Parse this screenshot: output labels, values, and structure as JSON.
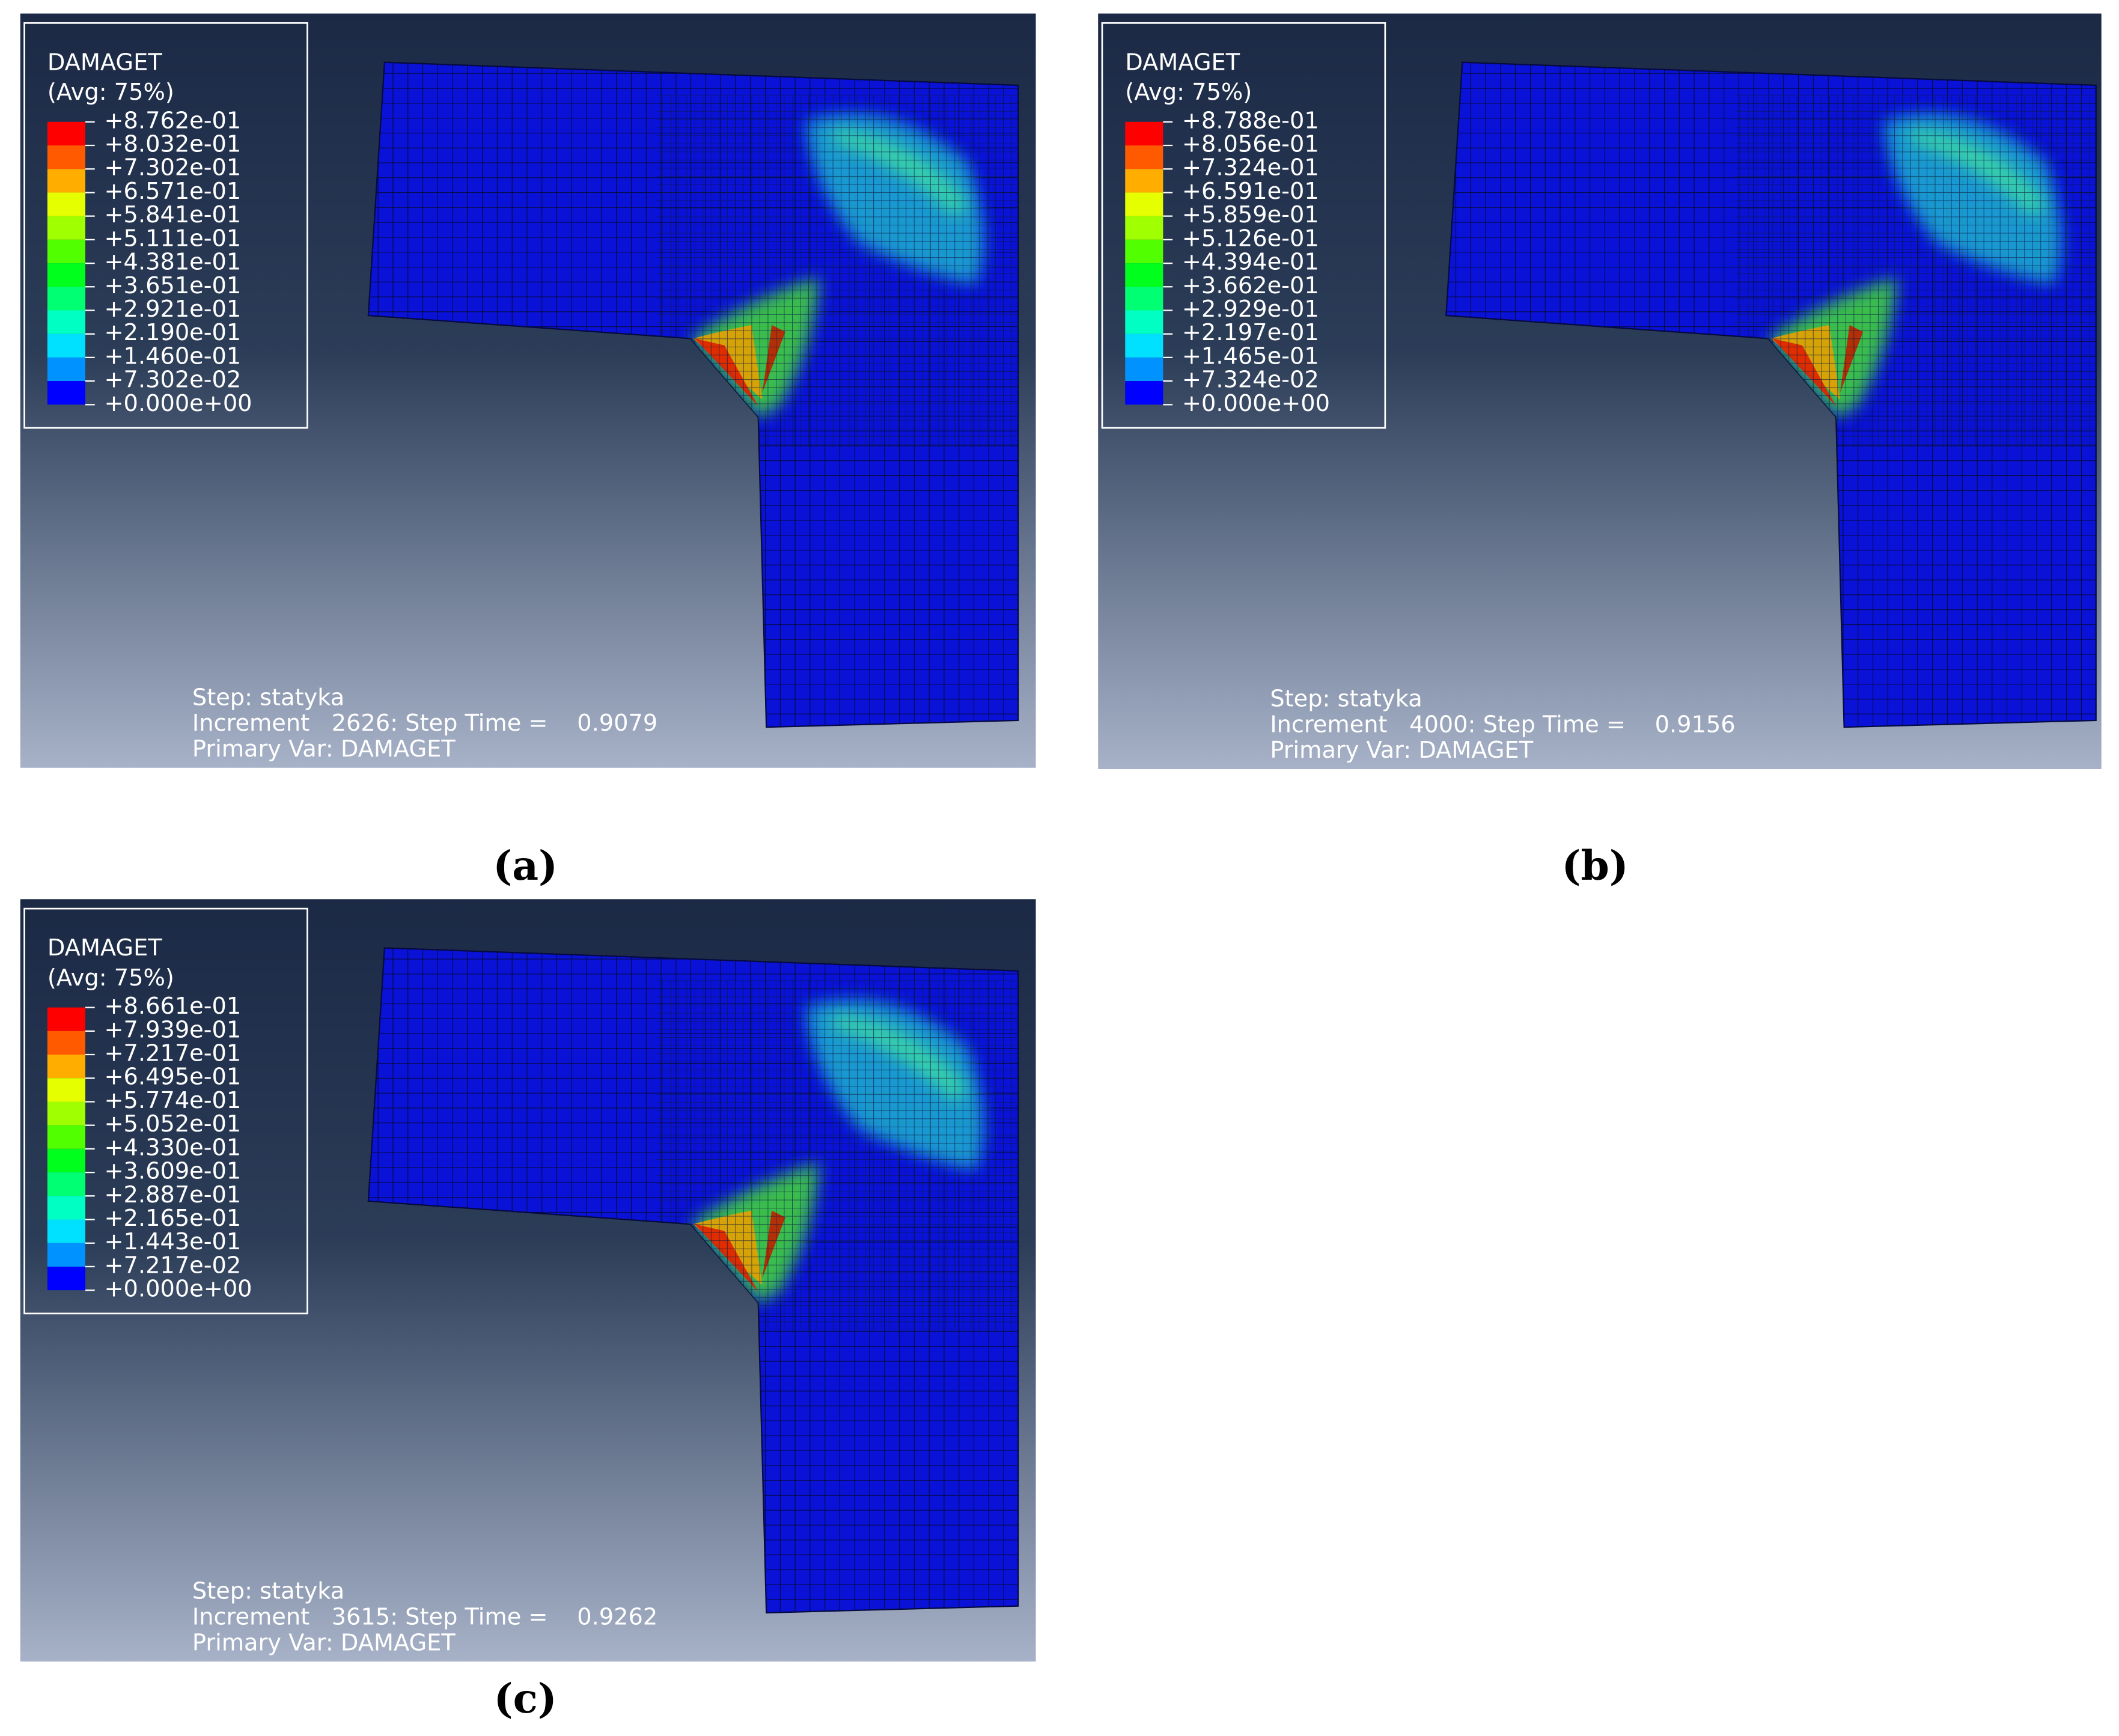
{
  "panels": [
    {
      "caption": "(a)",
      "legend_title": "DAMAGET",
      "legend_subtitle": "(Avg: 75%)",
      "legend_labels": [
        "+8.762e-01",
        "+8.032e-01",
        "+7.302e-01",
        "+6.571e-01",
        "+5.841e-01",
        "+5.111e-01",
        "+4.381e-01",
        "+3.651e-01",
        "+2.921e-01",
        "+2.190e-01",
        "+1.460e-01",
        "+7.302e-02",
        "+0.000e+00"
      ],
      "step": "Step: statyka",
      "increment": "Increment   2626: Step Time =    0.9079",
      "primary": "Primary Var: DAMAGET"
    },
    {
      "caption": "(b)",
      "legend_title": "DAMAGET",
      "legend_subtitle": "(Avg: 75%)",
      "legend_labels": [
        "+8.788e-01",
        "+8.056e-01",
        "+7.324e-01",
        "+6.591e-01",
        "+5.859e-01",
        "+5.126e-01",
        "+4.394e-01",
        "+3.662e-01",
        "+2.929e-01",
        "+2.197e-01",
        "+1.465e-01",
        "+7.324e-02",
        "+0.000e+00"
      ],
      "step": "Step: statyka",
      "increment": "Increment   4000: Step Time =    0.9156",
      "primary": "Primary Var: DAMAGET"
    },
    {
      "caption": "(c)",
      "legend_title": "DAMAGET",
      "legend_subtitle": "(Avg: 75%)",
      "legend_labels": [
        "+8.661e-01",
        "+7.939e-01",
        "+7.217e-01",
        "+6.495e-01",
        "+5.774e-01",
        "+5.052e-01",
        "+4.330e-01",
        "+3.609e-01",
        "+2.887e-01",
        "+2.165e-01",
        "+1.443e-01",
        "+7.217e-02",
        "+0.000e+00"
      ],
      "step": "Step: statyka",
      "increment": "Increment   3615: Step Time =    0.9262",
      "primary": "Primary Var: DAMAGET"
    }
  ]
}
